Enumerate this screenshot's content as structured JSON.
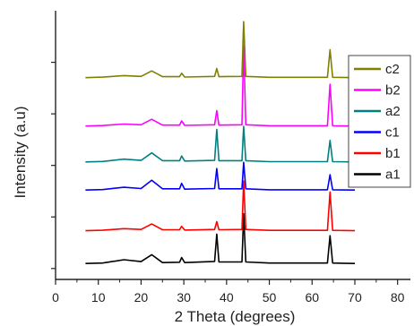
{
  "chart_data": {
    "type": "line",
    "xlabel": "2 Theta (degrees)",
    "ylabel": "Intensity (a.u)",
    "xlim": [
      0,
      83
    ],
    "xticks": [
      0,
      10,
      20,
      30,
      40,
      50,
      60,
      70,
      80
    ],
    "grid": false,
    "legend_position": "right",
    "series": [
      {
        "name": "a1",
        "color": "#000000",
        "offset": 0.3,
        "points": [
          [
            7,
            0.02
          ],
          [
            11,
            0.05
          ],
          [
            16,
            0.26
          ],
          [
            20,
            0.14
          ],
          [
            22.5,
            0.58
          ],
          [
            25,
            0.08
          ],
          [
            29,
            0.1
          ],
          [
            29.5,
            0.4
          ],
          [
            30.2,
            0.08
          ],
          [
            37.2,
            0.15
          ],
          [
            37.7,
            1.9
          ],
          [
            38.2,
            0.12
          ],
          [
            43.6,
            0.12
          ],
          [
            44,
            3.2
          ],
          [
            44.5,
            0.12
          ],
          [
            50,
            0.05
          ],
          [
            63.6,
            0.05
          ],
          [
            64.2,
            1.8
          ],
          [
            64.8,
            0.05
          ],
          [
            70,
            0.02
          ]
        ]
      },
      {
        "name": "b1",
        "color": "#ff0000",
        "offset": 2.4,
        "points": [
          [
            7,
            0.02
          ],
          [
            11,
            0.05
          ],
          [
            16,
            0.15
          ],
          [
            20,
            0.1
          ],
          [
            22.5,
            0.45
          ],
          [
            25,
            0.08
          ],
          [
            29,
            0.08
          ],
          [
            29.5,
            0.3
          ],
          [
            30.2,
            0.06
          ],
          [
            37.2,
            0.1
          ],
          [
            37.7,
            0.6
          ],
          [
            38.2,
            0.08
          ],
          [
            43.6,
            0.1
          ],
          [
            44,
            3.2
          ],
          [
            44.5,
            0.1
          ],
          [
            50,
            0.04
          ],
          [
            63.6,
            0.04
          ],
          [
            64.2,
            2.5
          ],
          [
            64.8,
            0.04
          ],
          [
            70,
            0.02
          ]
        ]
      },
      {
        "name": "c1",
        "color": "#0000ff",
        "offset": 5.0,
        "points": [
          [
            7,
            0.02
          ],
          [
            11,
            0.05
          ],
          [
            16,
            0.2
          ],
          [
            20,
            0.12
          ],
          [
            22.5,
            0.65
          ],
          [
            25,
            0.1
          ],
          [
            29,
            0.1
          ],
          [
            29.5,
            0.45
          ],
          [
            30.2,
            0.08
          ],
          [
            37.2,
            0.12
          ],
          [
            37.7,
            1.4
          ],
          [
            38.2,
            0.1
          ],
          [
            43.6,
            0.1
          ],
          [
            44,
            1.8
          ],
          [
            44.5,
            0.1
          ],
          [
            50,
            0.04
          ],
          [
            63.6,
            0.04
          ],
          [
            64.2,
            1.0
          ],
          [
            64.8,
            0.04
          ],
          [
            70,
            0.02
          ]
        ]
      },
      {
        "name": "a2",
        "color": "#008080",
        "offset": 6.8,
        "points": [
          [
            7,
            0.02
          ],
          [
            11,
            0.05
          ],
          [
            16,
            0.2
          ],
          [
            20,
            0.12
          ],
          [
            22.5,
            0.6
          ],
          [
            25,
            0.1
          ],
          [
            29,
            0.1
          ],
          [
            29.5,
            0.4
          ],
          [
            30.2,
            0.08
          ],
          [
            37.2,
            0.12
          ],
          [
            37.7,
            2.1
          ],
          [
            38.2,
            0.1
          ],
          [
            43.6,
            0.1
          ],
          [
            44,
            2.3
          ],
          [
            44.5,
            0.1
          ],
          [
            50,
            0.04
          ],
          [
            63.6,
            0.04
          ],
          [
            64.2,
            1.4
          ],
          [
            64.8,
            0.04
          ],
          [
            70,
            0.02
          ]
        ]
      },
      {
        "name": "b2",
        "color": "#ff00ff",
        "offset": 9.1,
        "points": [
          [
            7,
            0.02
          ],
          [
            11,
            0.05
          ],
          [
            16,
            0.15
          ],
          [
            20,
            0.1
          ],
          [
            22.5,
            0.45
          ],
          [
            25,
            0.08
          ],
          [
            29,
            0.08
          ],
          [
            29.5,
            0.35
          ],
          [
            30.2,
            0.06
          ],
          [
            37.2,
            0.1
          ],
          [
            37.7,
            1.0
          ],
          [
            38.2,
            0.08
          ],
          [
            43.6,
            0.1
          ],
          [
            44,
            5.2
          ],
          [
            44.5,
            0.1
          ],
          [
            50,
            0.04
          ],
          [
            63.6,
            0.04
          ],
          [
            64.2,
            2.7
          ],
          [
            64.8,
            0.04
          ],
          [
            70,
            0.02
          ]
        ]
      },
      {
        "name": "c2",
        "color": "#808000",
        "offset": 12.2,
        "points": [
          [
            7,
            0.02
          ],
          [
            11,
            0.05
          ],
          [
            16,
            0.15
          ],
          [
            20,
            0.1
          ],
          [
            22.5,
            0.45
          ],
          [
            25,
            0.08
          ],
          [
            29,
            0.08
          ],
          [
            29.5,
            0.3
          ],
          [
            30.2,
            0.06
          ],
          [
            37.2,
            0.1
          ],
          [
            37.7,
            0.6
          ],
          [
            38.2,
            0.08
          ],
          [
            43.6,
            0.1
          ],
          [
            44,
            3.6
          ],
          [
            44.5,
            0.1
          ],
          [
            50,
            0.04
          ],
          [
            63.6,
            0.04
          ],
          [
            64.2,
            1.8
          ],
          [
            64.8,
            0.04
          ],
          [
            70,
            0.02
          ]
        ]
      }
    ],
    "legend_order": [
      "c2",
      "b2",
      "a2",
      "c1",
      "b1",
      "a1"
    ],
    "ylim": [
      -0.7,
      16.5
    ]
  }
}
